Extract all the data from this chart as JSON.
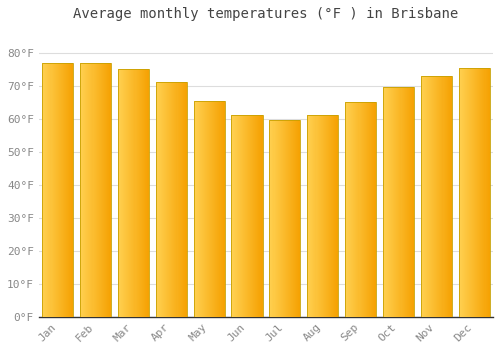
{
  "title": "Average monthly temperatures (°F ) in Brisbane",
  "months": [
    "Jan",
    "Feb",
    "Mar",
    "Apr",
    "May",
    "Jun",
    "Jul",
    "Aug",
    "Sep",
    "Oct",
    "Nov",
    "Dec"
  ],
  "values": [
    77,
    77,
    75,
    71,
    65.5,
    61,
    59.5,
    61,
    65,
    69.5,
    73,
    75.5
  ],
  "bar_color_left": "#FFD050",
  "bar_color_right": "#F5A000",
  "bar_edge_color": "#C8A000",
  "background_color": "#FFFFFF",
  "plot_bg_color": "#FFFFFF",
  "grid_color": "#DDDDDD",
  "tick_label_color": "#888888",
  "title_color": "#444444",
  "ylim": [
    0,
    88
  ],
  "yticks": [
    0,
    10,
    20,
    30,
    40,
    50,
    60,
    70,
    80
  ],
  "ytick_labels": [
    "0°F",
    "10°F",
    "20°F",
    "30°F",
    "40°F",
    "50°F",
    "60°F",
    "70°F",
    "80°F"
  ],
  "title_fontsize": 10,
  "tick_fontsize": 8,
  "bar_width": 0.82
}
